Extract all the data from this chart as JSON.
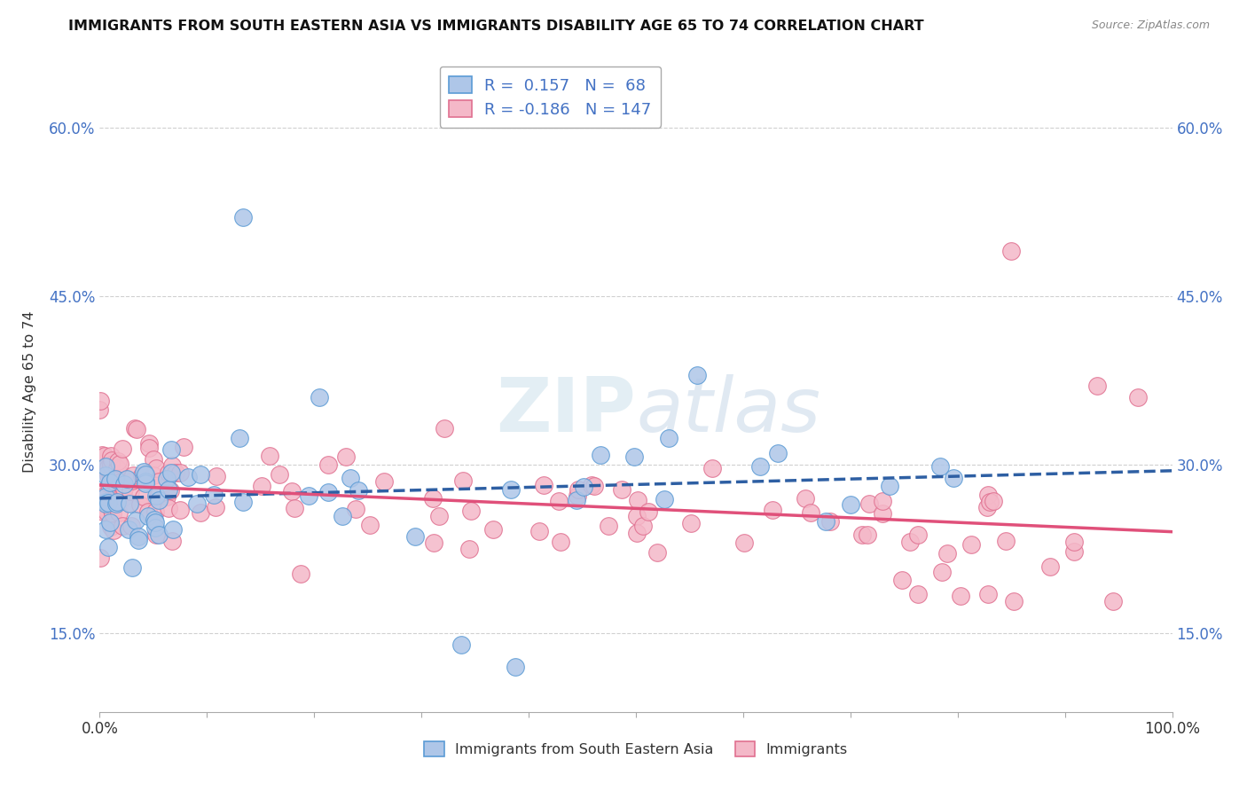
{
  "title": "IMMIGRANTS FROM SOUTH EASTERN ASIA VS IMMIGRANTS DISABILITY AGE 65 TO 74 CORRELATION CHART",
  "source": "Source: ZipAtlas.com",
  "ylabel": "Disability Age 65 to 74",
  "xlim": [
    0.0,
    1.0
  ],
  "ylim": [
    0.08,
    0.65
  ],
  "yticks": [
    0.15,
    0.3,
    0.45,
    0.6
  ],
  "ytick_labels": [
    "15.0%",
    "30.0%",
    "45.0%",
    "60.0%"
  ],
  "xticks": [
    0.0,
    0.1,
    0.2,
    0.3,
    0.4,
    0.5,
    0.6,
    0.7,
    0.8,
    0.9,
    1.0
  ],
  "xtick_labels": [
    "0.0%",
    "",
    "",
    "",
    "",
    "",
    "",
    "",
    "",
    "",
    "100.0%"
  ],
  "background_color": "#ffffff",
  "grid_color": "#d0d0d0",
  "series1_color": "#aec6e8",
  "series1_edge": "#5b9bd5",
  "series1_line_color": "#2e5fa3",
  "series1_R": 0.157,
  "series1_N": 68,
  "series1_label": "Immigrants from South Eastern Asia",
  "series2_color": "#f4b8c8",
  "series2_edge": "#e07090",
  "series2_line_color": "#e0507a",
  "series2_R": -0.186,
  "series2_N": 147,
  "series2_label": "Immigrants",
  "watermark_text": "ZIPatlas",
  "marker_size": 200
}
